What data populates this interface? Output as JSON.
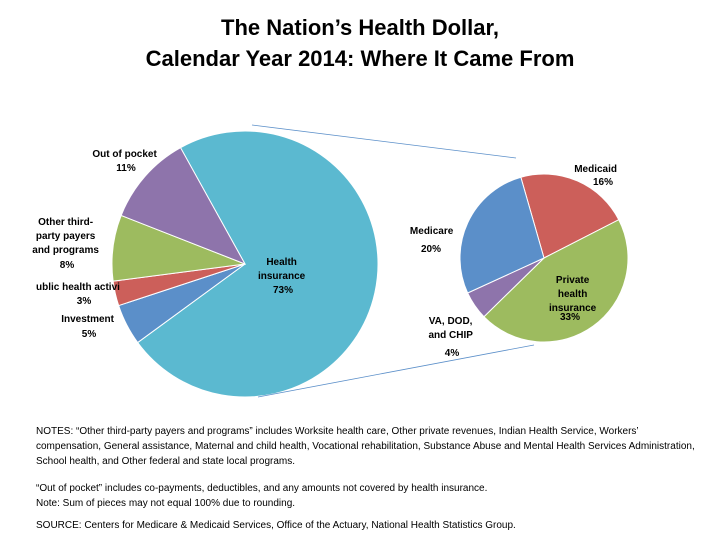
{
  "title_line1": "The Nation’s Health Dollar,",
  "title_line2": "Calendar Year 2014:  Where It Came From",
  "chart_data": [
    {
      "type": "pie",
      "slices": [
        {
          "label": "Health insurance",
          "value": 73,
          "value_label": "73%",
          "color": "#5bb9d0"
        },
        {
          "label": "Investment",
          "value": 5,
          "value_label": "5%",
          "color": "#5b8fc9"
        },
        {
          "label": "Public health activity",
          "value": 3,
          "value_label": "3%",
          "color": "#cc5f5a"
        },
        {
          "label": "Other third-party payers and programs",
          "value": 8,
          "value_label": "8%",
          "color": "#9dbb5f"
        },
        {
          "label": "Out of pocket",
          "value": 11,
          "value_label": "11%",
          "color": "#8e74ab"
        }
      ]
    },
    {
      "type": "pie",
      "slices": [
        {
          "label": "Medicaid",
          "value": 16,
          "value_label": "16%",
          "color": "#cc5f5a"
        },
        {
          "label": "Private health insurance",
          "value": 33,
          "value_label": "33%",
          "color": "#9dbb5f"
        },
        {
          "label": "VA, DOD, and CHIP",
          "value": 4,
          "value_label": "4%",
          "color": "#8e74ab"
        },
        {
          "label": "Medicare",
          "value": 20,
          "value_label": "20%",
          "color": "#5b8fc9"
        }
      ]
    }
  ],
  "labels": {
    "out_of_pocket": [
      "Out of pocket",
      "11%"
    ],
    "other_third_party": [
      "Other third-",
      "party payers",
      "and programs",
      "8%"
    ],
    "public_health": [
      "ublic health activi",
      "3%"
    ],
    "investment": [
      "Investment",
      "5%"
    ],
    "health_insurance": [
      "Health",
      "insurance",
      "73%"
    ],
    "medicaid": [
      "Medicaid",
      "16%"
    ],
    "medicare": [
      "Medicare",
      "20%"
    ],
    "private": [
      "Private",
      "health",
      "insurance",
      "33%"
    ],
    "va": [
      "VA, DOD,",
      "and CHIP",
      "4%"
    ]
  },
  "notes": {
    "line1": "NOTES: “Other third-party payers and programs” includes Worksite health care, Other private revenues, Indian Health Service, Workers’ compensation, General assistance, Maternal and child health, Vocational rehabilitation, Substance Abuse and Mental Health Services Administration, School health, and Other federal and state local programs.",
    "line2": "“Out of pocket” includes co-payments, deductibles, and any amounts not covered by health insurance.",
    "line3": "Note: Sum of pieces may not equal 100% due to rounding.",
    "source": "SOURCE: Centers for Medicare & Medicaid Services, Office of the Actuary, National Health Statistics Group."
  }
}
